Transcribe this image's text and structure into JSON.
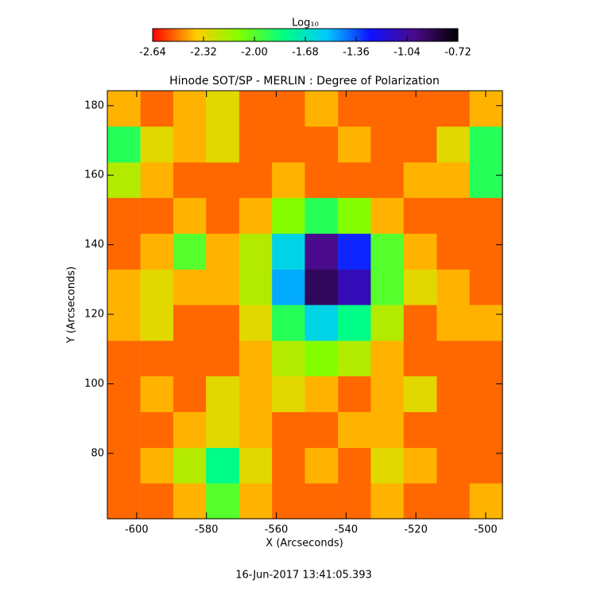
{
  "chart_data": {
    "type": "heatmap",
    "title": "Hinode SOT/SP - MERLIN : Degree of Polarization",
    "xlabel": "X (Arcseconds)",
    "ylabel": "Y (Arcseconds)",
    "footer": "16-Jun-2017 13:41:05.393",
    "colorbar_label": "Log₁₀",
    "xlim": [
      -608.4,
      -495.2
    ],
    "ylim": [
      61.2,
      184.3
    ],
    "xticks": [
      -600,
      -580,
      -560,
      -540,
      -520,
      -500
    ],
    "yticks": [
      80,
      100,
      120,
      140,
      160,
      180
    ],
    "zlim": [
      -2.64,
      -0.72
    ],
    "zticks": [
      -2.64,
      -2.32,
      {
        "value": -2,
        "label": "-2.00"
      },
      -1.68,
      -1.36,
      -1.04,
      -0.72
    ],
    "colormap": [
      "#ff0000",
      "#ffcc00",
      "#80ff00",
      "#00ff80",
      "#00c8ff",
      "#1010ff",
      "#4a0a8a",
      "#000000"
    ],
    "x": [
      -603.7,
      -594.2,
      -584.8,
      -575.4,
      -565.9,
      -556.5,
      -547.1,
      -537.6,
      -528.2,
      -518.8,
      -509.3,
      -499.9
    ],
    "y": [
      66.3,
      76.6,
      86.8,
      97.1,
      107.4,
      117.6,
      127.9,
      138.1,
      148.4,
      158.7,
      168.9,
      179.2
    ],
    "z": [
      [
        -2.5,
        -2.5,
        -2.4,
        -2.0,
        -2.4,
        -2.5,
        -2.5,
        -2.5,
        -2.4,
        -2.5,
        -2.5,
        -2.4
      ],
      [
        -2.5,
        -2.4,
        -2.2,
        -1.8,
        -2.3,
        -2.5,
        -2.4,
        -2.5,
        -2.3,
        -2.4,
        -2.5,
        -2.5
      ],
      [
        -2.5,
        -2.5,
        -2.4,
        -2.3,
        -2.4,
        -2.5,
        -2.5,
        -2.4,
        -2.4,
        -2.5,
        -2.5,
        -2.5
      ],
      [
        -2.5,
        -2.4,
        -2.5,
        -2.3,
        -2.4,
        -2.3,
        -2.4,
        -2.5,
        -2.4,
        -2.3,
        -2.5,
        -2.5
      ],
      [
        -2.5,
        -2.5,
        -2.5,
        -2.5,
        -2.4,
        -2.2,
        -2.1,
        -2.2,
        -2.4,
        -2.5,
        -2.5,
        -2.5
      ],
      [
        -2.4,
        -2.3,
        -2.5,
        -2.5,
        -2.3,
        -1.9,
        -1.6,
        -1.8,
        -2.2,
        -2.5,
        -2.4,
        -2.4
      ],
      [
        -2.4,
        -2.3,
        -2.4,
        -2.4,
        -2.2,
        -1.5,
        -0.9,
        -1.1,
        -2.0,
        -2.3,
        -2.4,
        -2.5
      ],
      [
        -2.5,
        -2.4,
        -2.0,
        -2.4,
        -2.2,
        -1.6,
        -1.0,
        -1.3,
        -2.0,
        -2.4,
        -2.5,
        -2.5
      ],
      [
        -2.5,
        -2.5,
        -2.4,
        -2.5,
        -2.4,
        -2.1,
        -1.9,
        -2.1,
        -2.4,
        -2.5,
        -2.5,
        -2.5
      ],
      [
        -2.2,
        -2.4,
        -2.5,
        -2.5,
        -2.5,
        -2.4,
        -2.5,
        -2.5,
        -2.5,
        -2.4,
        -2.4,
        -1.9
      ],
      [
        -1.9,
        -2.3,
        -2.4,
        -2.3,
        -2.5,
        -2.5,
        -2.5,
        -2.4,
        -2.5,
        -2.5,
        -2.3,
        -1.9
      ],
      [
        -2.4,
        -2.5,
        -2.4,
        -2.3,
        -2.5,
        -2.5,
        -2.4,
        -2.5,
        -2.5,
        -2.5,
        -2.5,
        -2.4
      ]
    ]
  }
}
